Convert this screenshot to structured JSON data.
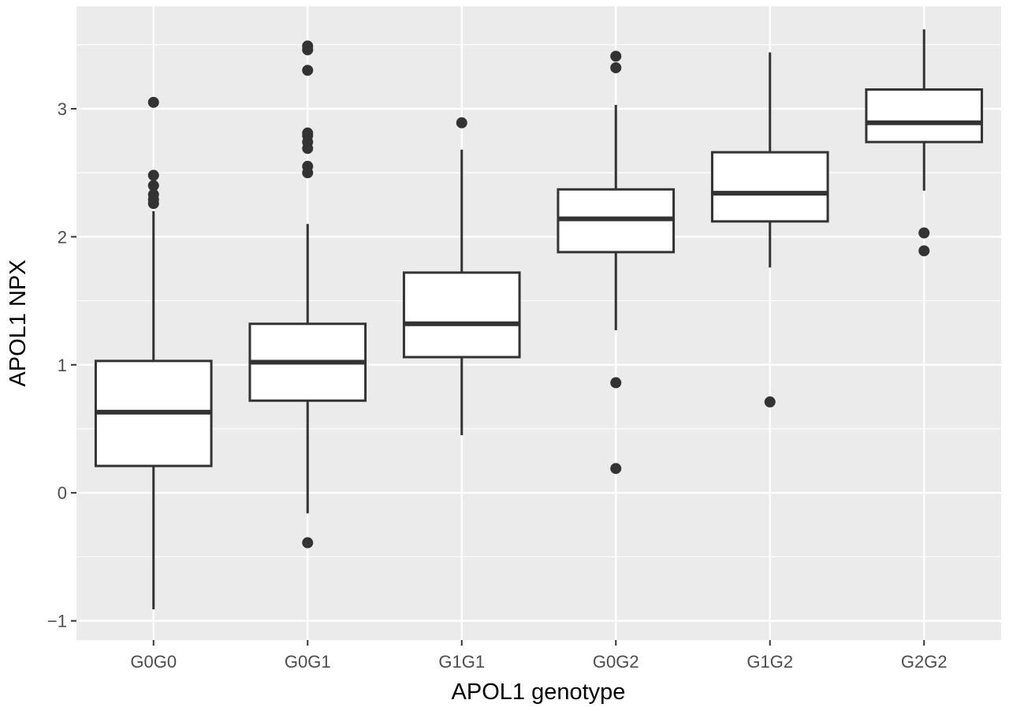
{
  "chart_data": {
    "type": "boxplot",
    "title": "",
    "xlabel": "APOL1 genotype",
    "ylabel": "APOL1 NPX",
    "ylim": [
      -1.15,
      3.8
    ],
    "yticks": [
      -1,
      0,
      1,
      2,
      3
    ],
    "ytick_labels": [
      "−1",
      "0",
      "1",
      "2",
      "3"
    ],
    "grid": true,
    "legend": "none",
    "categories": [
      "G0G0",
      "G0G1",
      "G1G1",
      "G0G2",
      "G1G2",
      "G2G2"
    ],
    "boxes": [
      {
        "category": "G0G0",
        "whisker_low": -0.91,
        "q1": 0.21,
        "median": 0.63,
        "q3": 1.03,
        "whisker_high": 2.2,
        "outliers": [
          2.26,
          2.29,
          2.33,
          2.4,
          2.48,
          3.05
        ]
      },
      {
        "category": "G0G1",
        "whisker_low": -0.16,
        "q1": 0.72,
        "median": 1.02,
        "q3": 1.32,
        "whisker_high": 2.1,
        "outliers": [
          -0.39,
          2.5,
          2.55,
          2.69,
          2.74,
          2.79,
          2.81,
          3.3,
          3.46,
          3.49
        ]
      },
      {
        "category": "G1G1",
        "whisker_low": 0.45,
        "q1": 1.06,
        "median": 1.32,
        "q3": 1.72,
        "whisker_high": 2.68,
        "outliers": [
          2.89
        ]
      },
      {
        "category": "G0G2",
        "whisker_low": 1.27,
        "q1": 1.88,
        "median": 2.14,
        "q3": 2.37,
        "whisker_high": 3.03,
        "outliers": [
          0.19,
          0.86,
          3.32,
          3.41
        ]
      },
      {
        "category": "G1G2",
        "whisker_low": 1.76,
        "q1": 2.12,
        "median": 2.34,
        "q3": 2.66,
        "whisker_high": 3.44,
        "outliers": [
          0.71
        ]
      },
      {
        "category": "G2G2",
        "whisker_low": 2.36,
        "q1": 2.74,
        "median": 2.89,
        "q3": 3.15,
        "whisker_high": 3.62,
        "outliers": [
          1.89,
          2.03
        ]
      }
    ],
    "colors": {
      "panel_background": "#ebebeb",
      "grid_major": "#ffffff",
      "box_fill": "#ffffff",
      "box_stroke": "#333333",
      "outlier": "#333333"
    }
  }
}
